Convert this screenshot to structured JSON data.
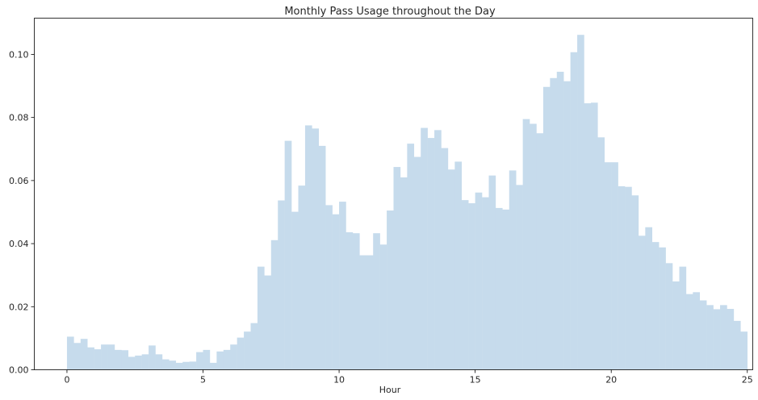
{
  "chart_data": {
    "type": "bar",
    "title": "Monthly Pass Usage throughout the Day",
    "xlabel": "Hour",
    "ylabel": "",
    "xlim": [
      -1.2,
      25.2
    ],
    "ylim": [
      0,
      0.1115
    ],
    "xticks": [
      0,
      5,
      10,
      15,
      20,
      25
    ],
    "yticks": [
      0.0,
      0.02,
      0.04,
      0.06,
      0.08,
      0.1
    ],
    "ytick_labels": [
      "0.00",
      "0.02",
      "0.04",
      "0.06",
      "0.08",
      "0.10"
    ],
    "bin_start": 0,
    "bin_width": 0.25,
    "values": [
      0.0105,
      0.0085,
      0.0098,
      0.0071,
      0.0065,
      0.008,
      0.008,
      0.0063,
      0.0062,
      0.0041,
      0.0045,
      0.0049,
      0.0077,
      0.0049,
      0.0033,
      0.0029,
      0.0022,
      0.0025,
      0.0026,
      0.0056,
      0.0063,
      0.0022,
      0.0058,
      0.0063,
      0.008,
      0.0102,
      0.0121,
      0.0148,
      0.0327,
      0.0299,
      0.0411,
      0.0537,
      0.0726,
      0.0501,
      0.0584,
      0.0775,
      0.0765,
      0.071,
      0.0522,
      0.0493,
      0.0533,
      0.0436,
      0.0433,
      0.0363,
      0.0363,
      0.0433,
      0.0397,
      0.0505,
      0.0643,
      0.061,
      0.0717,
      0.0675,
      0.0767,
      0.0735,
      0.076,
      0.0703,
      0.0635,
      0.066,
      0.0538,
      0.0528,
      0.0562,
      0.0547,
      0.0616,
      0.0513,
      0.0508,
      0.0632,
      0.0586,
      0.0795,
      0.078,
      0.075,
      0.0897,
      0.0925,
      0.0945,
      0.0915,
      0.1007,
      0.1062,
      0.0845,
      0.0847,
      0.0737,
      0.0658,
      0.0658,
      0.0582,
      0.058,
      0.0553,
      0.0425,
      0.0452,
      0.0405,
      0.0388,
      0.0338,
      0.028,
      0.0327,
      0.024,
      0.0246,
      0.022,
      0.0205,
      0.0192,
      0.0205,
      0.0193,
      0.0155,
      0.0121
    ],
    "bar_color": "#c6dbec",
    "grid": false,
    "legend": false
  }
}
